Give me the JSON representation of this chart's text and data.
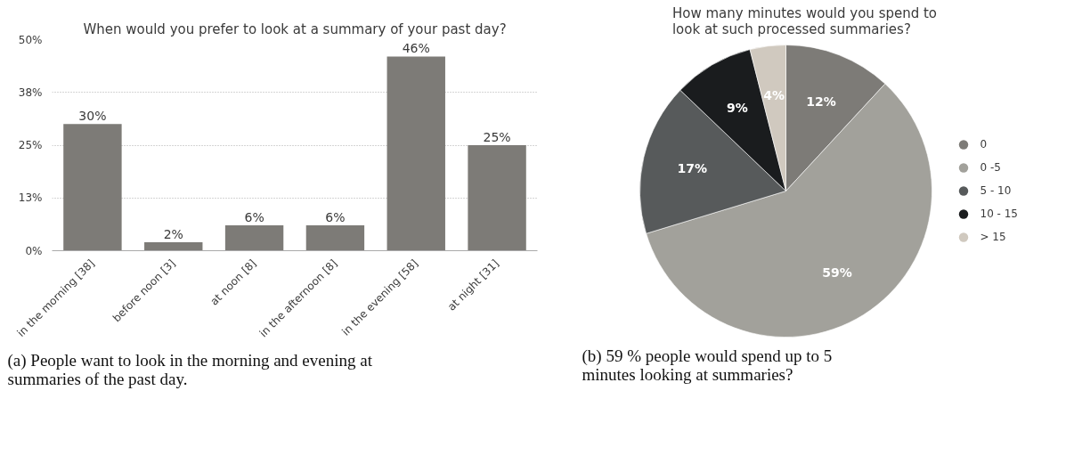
{
  "chart_data": [
    {
      "type": "bar",
      "title": "When would you prefer to look at a summary of your past day?",
      "categories": [
        "in the morning [38]",
        "before noon [3]",
        "at noon [8]",
        "in the afternoon [8]",
        "in the evening [58]",
        "at night [31]"
      ],
      "values": [
        30,
        2,
        6,
        6,
        46,
        25
      ],
      "value_labels": [
        "30%",
        "2%",
        "6%",
        "6%",
        "46%",
        "25%"
      ],
      "color": "#7d7b77",
      "ylim": [
        0,
        50
      ],
      "yticks": [
        {
          "value": 0,
          "label": "0%"
        },
        {
          "value": 12.5,
          "label": "13%"
        },
        {
          "value": 25,
          "label": "25%"
        },
        {
          "value": 37.5,
          "label": "38%"
        },
        {
          "value": 50,
          "label": "50%"
        }
      ],
      "grid": "y",
      "annotations": [
        "(a) People want to look in the morning and evening at summaries of the past day."
      ]
    },
    {
      "type": "pie",
      "title": "How many minutes would you spend to look at such processed summaries?",
      "categories": [
        "0",
        "0 -5",
        "5 - 10",
        "10 - 15",
        "> 15"
      ],
      "values": [
        12,
        59,
        17,
        9,
        4
      ],
      "value_labels": [
        "12%",
        "59%",
        "17%",
        "9%",
        "4%"
      ],
      "colors": [
        "#7d7b77",
        "#a2a19b",
        "#575a5b",
        "#1a1c1e",
        "#d0c9bf"
      ],
      "legend": "right",
      "annotations": [
        "(b) 59 % people would spend up to 5 minutes looking at summaries?"
      ]
    }
  ]
}
